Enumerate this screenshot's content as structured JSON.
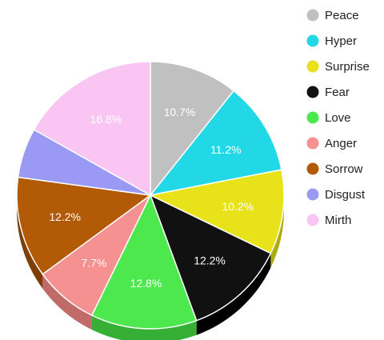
{
  "chart_data": {
    "type": "pie",
    "title": "",
    "legend_position": "right",
    "three_d": true,
    "start_angle_deg": -90,
    "direction": "clockwise",
    "slices": [
      {
        "name": "Peace",
        "value": 10.7,
        "label": "10.7%",
        "color": "#c0c0c0",
        "side": "#8f8f8f"
      },
      {
        "name": "Hyper",
        "value": 11.2,
        "label": "11.2%",
        "color": "#22d8e6",
        "side": "#15a3ad"
      },
      {
        "name": "Surprise",
        "value": 10.2,
        "label": "10.2%",
        "color": "#e8e21a",
        "side": "#aeaa12"
      },
      {
        "name": "Fear",
        "value": 12.2,
        "label": "12.2%",
        "color": "#111111",
        "side": "#000000"
      },
      {
        "name": "Love",
        "value": 12.8,
        "label": "12.8%",
        "color": "#4de84d",
        "side": "#35b035"
      },
      {
        "name": "Anger",
        "value": 7.7,
        "label": "7.7%",
        "color": "#f59191",
        "side": "#c06a6a"
      },
      {
        "name": "Sorrow",
        "value": 12.2,
        "label": "12.2%",
        "color": "#b35a06",
        "side": "#7f3e03"
      },
      {
        "name": "Disgust",
        "value": 6.0,
        "label": "",
        "color": "#9a9af5",
        "side": "#6f6fc0"
      },
      {
        "name": "Mirth",
        "value": 16.8,
        "label": "16.8%",
        "color": "#f9c6f4",
        "side": "#c896c2"
      }
    ]
  }
}
